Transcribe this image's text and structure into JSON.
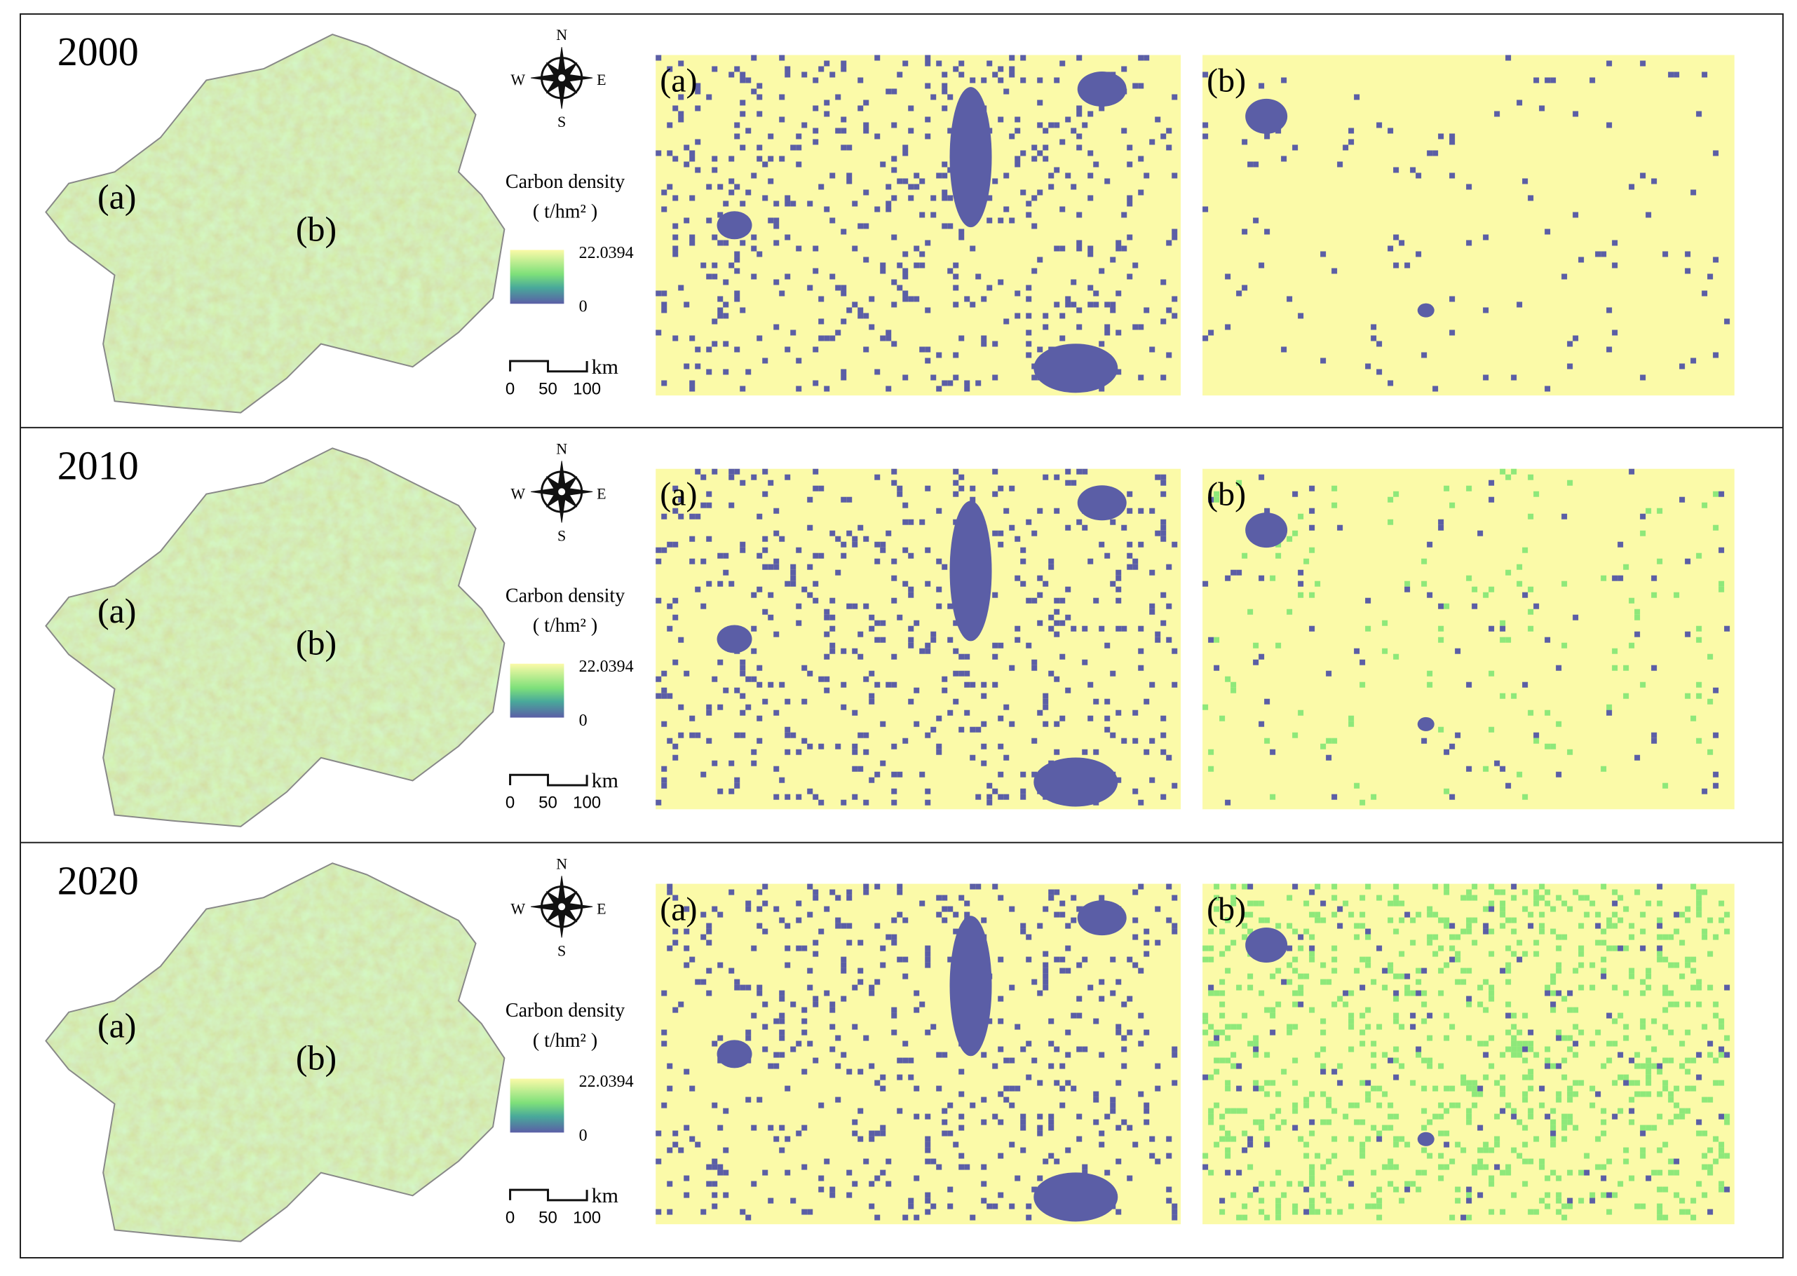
{
  "panels": [
    {
      "year": "2000",
      "map_labels": [
        "(a)",
        "(b)"
      ],
      "compass": {
        "n": "N",
        "e": "E",
        "s": "S",
        "w": "W"
      },
      "legend": {
        "title": "Carbon density",
        "unit": "( t/hm² )",
        "max": "22.0394",
        "min": "0"
      },
      "scale": {
        "unit": "km",
        "ticks": [
          "0",
          "50",
          "100"
        ]
      },
      "inset_labels": [
        "(a)",
        "(b)"
      ]
    },
    {
      "year": "2010",
      "map_labels": [
        "(a)",
        "(b)"
      ],
      "compass": {
        "n": "N",
        "e": "E",
        "s": "S",
        "w": "W"
      },
      "legend": {
        "title": "Carbon density",
        "unit": "( t/hm² )",
        "max": "22.0394",
        "min": "0"
      },
      "scale": {
        "unit": "km",
        "ticks": [
          "0",
          "50",
          "100"
        ]
      },
      "inset_labels": [
        "(a)",
        "(b)"
      ]
    },
    {
      "year": "2020",
      "map_labels": [
        "(a)",
        "(b)"
      ],
      "compass": {
        "n": "N",
        "e": "E",
        "s": "S",
        "w": "W"
      },
      "legend": {
        "title": "Carbon density",
        "unit": "( t/hm² )",
        "max": "22.0394",
        "min": "0"
      },
      "scale": {
        "unit": "km",
        "ticks": [
          "0",
          "50",
          "100"
        ]
      },
      "inset_labels": [
        "(a)",
        "(b)"
      ]
    }
  ]
}
